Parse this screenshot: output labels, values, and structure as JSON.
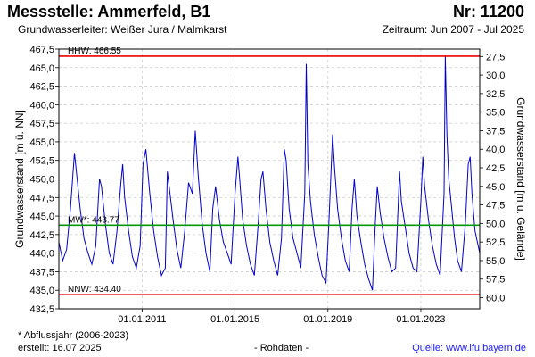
{
  "header": {
    "title": "Messstelle: Ammerfeld, B1",
    "number": "Nr: 11200",
    "aquifer": "Grundwasserleiter:  Weißer Jura / Malmkarst",
    "period": "Zeitraum: Jun 2007 - Jul 2025"
  },
  "footer": {
    "footnote": "* Abflussjahr (2006-2023)",
    "created": "erstellt:  16.07.2025",
    "rawdata": "- Rohdaten -",
    "source": "Quelle: www.lfu.bayern.de"
  },
  "colors": {
    "series": "#0000cc",
    "hhw": "#ee0000",
    "nnw": "#ee0000",
    "mw": "#009900",
    "grid": "#cccccc"
  },
  "chart_data": {
    "type": "line",
    "ylabel": "Grundwasserstand [m ü. NN]",
    "y2label": "Grundwasserstand [m u. Gelände]",
    "ylim": [
      432.5,
      467.5
    ],
    "yticks": [
      "432,5",
      "435,0",
      "437,5",
      "440,0",
      "442,5",
      "445,0",
      "447,5",
      "450,0",
      "452,5",
      "455,0",
      "457,5",
      "460,0",
      "462,5",
      "465,0",
      "467,5"
    ],
    "y2ticks": [
      "27,5",
      "30,0",
      "32,5",
      "35,0",
      "37,5",
      "40,0",
      "42,5",
      "45,0",
      "47,5",
      "50,0",
      "52,5",
      "55,0",
      "57,5",
      "60,0"
    ],
    "xlim": [
      "2007-06-01",
      "2025-07-15"
    ],
    "xticks": [
      "01.01.2011",
      "01.01.2015",
      "01.01.2019",
      "01.01.2023"
    ],
    "grid": true,
    "reference_lines": [
      {
        "label": "HHW: 466.55",
        "value": 466.55
      },
      {
        "label": "MW*: 443.77",
        "value": 443.77
      },
      {
        "label": "NNW: 434.40",
        "value": 434.4
      }
    ],
    "series": [
      {
        "x": [
          "2007-06-01",
          "2007-08-01",
          "2007-10-01",
          "2007-12-01",
          "2008-02-01",
          "2008-03-15",
          "2008-05-01",
          "2008-07-01",
          "2008-09-01",
          "2008-11-01",
          "2009-01-01",
          "2009-03-01",
          "2009-04-01",
          "2009-06-01",
          "2009-08-01",
          "2009-10-01",
          "2009-12-01",
          "2010-02-01",
          "2010-03-01",
          "2010-04-01",
          "2010-06-01",
          "2010-08-01",
          "2010-10-01",
          "2010-12-01",
          "2011-01-15",
          "2011-03-01",
          "2011-05-01",
          "2011-07-01",
          "2011-09-01",
          "2011-11-01",
          "2012-01-01",
          "2012-02-01",
          "2012-03-01",
          "2012-05-01",
          "2012-07-01",
          "2012-09-01",
          "2012-11-01",
          "2013-01-01",
          "2013-03-01",
          "2013-04-15",
          "2013-06-01",
          "2013-08-01",
          "2013-10-01",
          "2013-12-01",
          "2014-01-15",
          "2014-03-01",
          "2014-05-01",
          "2014-07-01",
          "2014-09-01",
          "2014-11-01",
          "2015-01-01",
          "2015-02-15",
          "2015-03-15",
          "2015-05-01",
          "2015-07-01",
          "2015-09-01",
          "2015-11-01",
          "2016-01-01",
          "2016-02-15",
          "2016-03-15",
          "2016-05-01",
          "2016-07-01",
          "2016-09-01",
          "2016-11-01",
          "2017-01-01",
          "2017-02-15",
          "2017-03-15",
          "2017-05-01",
          "2017-07-01",
          "2017-09-01",
          "2017-11-01",
          "2018-01-01",
          "2018-01-25",
          "2018-02-20",
          "2018-04-01",
          "2018-06-01",
          "2018-08-01",
          "2018-10-01",
          "2018-12-01",
          "2019-01-15",
          "2019-03-15",
          "2019-04-15",
          "2019-06-01",
          "2019-08-01",
          "2019-10-01",
          "2019-12-01",
          "2020-01-15",
          "2020-02-20",
          "2020-04-01",
          "2020-06-01",
          "2020-08-01",
          "2020-10-01",
          "2020-12-01",
          "2021-01-15",
          "2021-02-15",
          "2021-04-01",
          "2021-06-01",
          "2021-08-01",
          "2021-10-01",
          "2021-12-01",
          "2022-02-01",
          "2022-03-01",
          "2022-05-01",
          "2022-07-01",
          "2022-09-01",
          "2022-11-01",
          "2023-01-01",
          "2023-02-01",
          "2023-03-01",
          "2023-05-01",
          "2023-07-01",
          "2023-09-01",
          "2023-11-01",
          "2024-01-01",
          "2024-01-20",
          "2024-02-15",
          "2024-03-15",
          "2024-05-01",
          "2024-06-15",
          "2024-08-01",
          "2024-10-01",
          "2024-12-01",
          "2025-01-15",
          "2025-02-15",
          "2025-03-15",
          "2025-05-01",
          "2025-07-15"
        ],
        "y": [
          441.5,
          439.0,
          440.5,
          446.0,
          453.5,
          450.0,
          446.0,
          442.0,
          440.0,
          438.5,
          441.0,
          450.0,
          449.0,
          444.0,
          440.0,
          438.5,
          443.0,
          449.5,
          452.0,
          447.5,
          443.0,
          439.5,
          438.0,
          441.0,
          452.0,
          454.0,
          448.0,
          443.0,
          439.5,
          437.0,
          438.0,
          451.0,
          449.0,
          444.5,
          440.5,
          438.0,
          443.0,
          449.5,
          448.0,
          456.5,
          450.5,
          444.0,
          440.0,
          437.5,
          446.0,
          449.0,
          444.5,
          441.5,
          440.0,
          438.5,
          448.0,
          453.0,
          450.0,
          444.5,
          441.0,
          438.5,
          437.0,
          444.0,
          450.0,
          451.0,
          446.0,
          441.5,
          439.0,
          437.0,
          442.0,
          454.0,
          452.5,
          446.0,
          442.0,
          440.0,
          438.0,
          448.0,
          465.5,
          452.0,
          447.0,
          442.5,
          439.5,
          437.0,
          436.0,
          444.0,
          456.0,
          451.5,
          446.0,
          442.0,
          439.0,
          437.5,
          446.0,
          450.0,
          445.0,
          441.5,
          438.5,
          436.5,
          435.0,
          444.0,
          449.0,
          445.5,
          442.0,
          439.5,
          437.5,
          438.0,
          451.0,
          447.0,
          443.5,
          440.0,
          438.0,
          437.5,
          447.0,
          453.0,
          449.0,
          444.5,
          441.0,
          438.5,
          437.0,
          448.0,
          466.5,
          456.0,
          450.0,
          446.0,
          442.0,
          439.0,
          437.5,
          444.0,
          452.0,
          453.0,
          448.0,
          443.0,
          440.0
        ]
      }
    ]
  }
}
